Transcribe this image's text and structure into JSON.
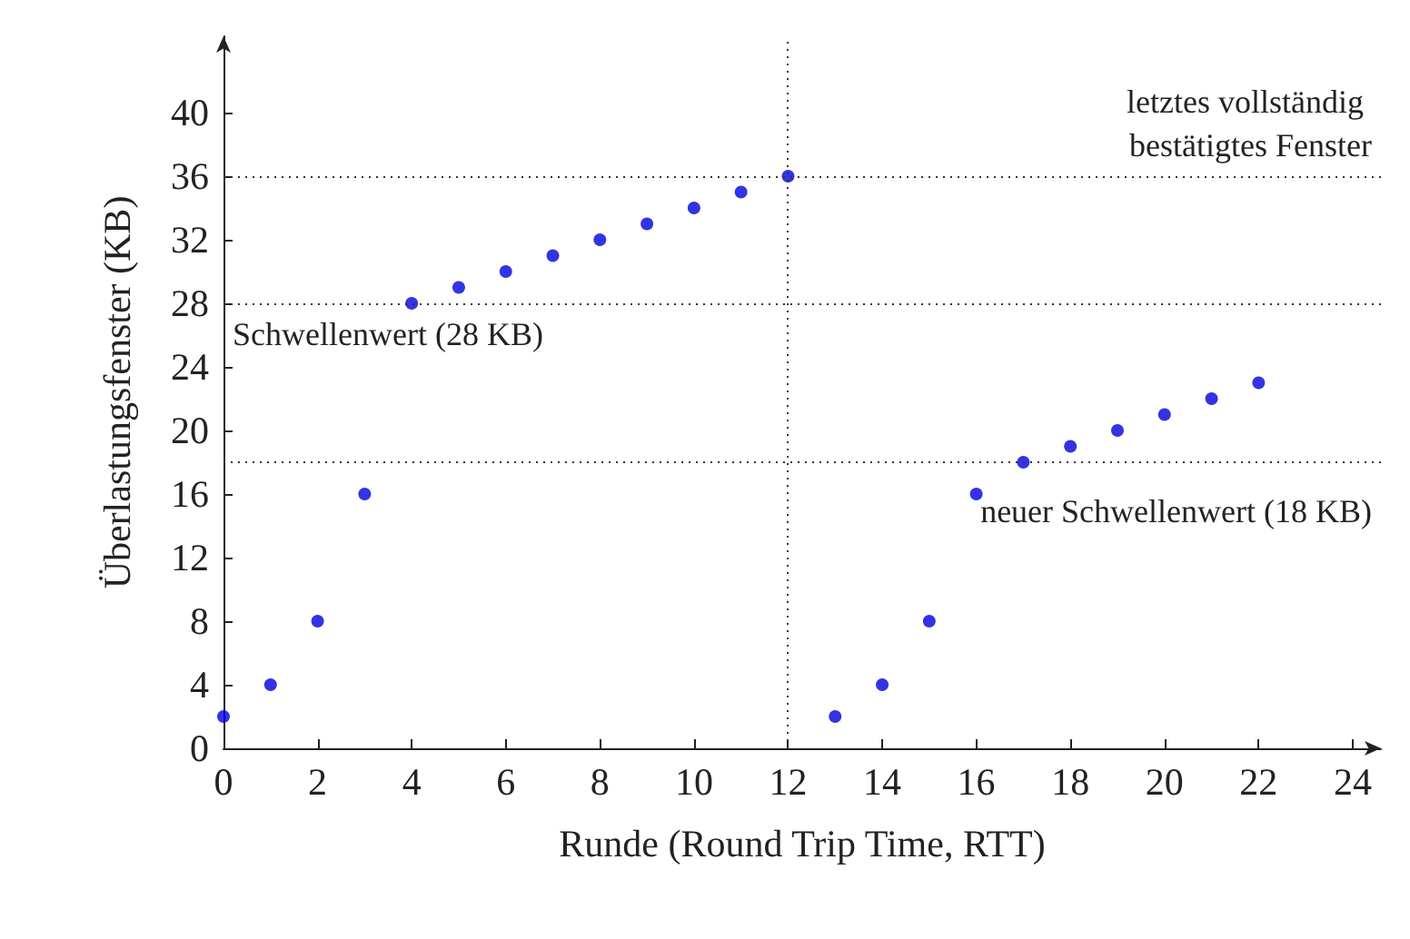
{
  "chart_data": {
    "type": "scatter",
    "xlabel": "Runde (Round Trip Time, RTT)",
    "ylabel": "Überlastungsfenster (KB)",
    "x": [
      0,
      1,
      2,
      3,
      4,
      5,
      6,
      7,
      8,
      9,
      10,
      11,
      12,
      13,
      14,
      15,
      16,
      17,
      18,
      19,
      20,
      21,
      22
    ],
    "series": [
      {
        "color": "#0000dd",
        "values": [
          2,
          4,
          8,
          16,
          28,
          29,
          30,
          31,
          32,
          33,
          34,
          35,
          36,
          2,
          4,
          8,
          16,
          18,
          19,
          20,
          21,
          22,
          23
        ]
      }
    ],
    "xlim": [
      0,
      24.6
    ],
    "xticks": [
      0,
      2,
      4,
      6,
      8,
      10,
      12,
      14,
      16,
      18,
      20,
      22,
      24
    ],
    "ylim": [
      0,
      44.8
    ],
    "yticks": [
      0,
      4,
      8,
      12,
      16,
      20,
      24,
      28,
      32,
      36,
      40
    ],
    "grid": false,
    "marker": "circle",
    "ref_lines": [
      {
        "axis": "y",
        "value": 28,
        "label": "Schwellenwert (28 KB)",
        "color": "#333333",
        "line_style": "dotted"
      },
      {
        "axis": "y",
        "value": 36,
        "label": "letztes vollständig bestätigtes Fenster",
        "color": "#333333",
        "line_style": "dotted"
      },
      {
        "axis": "x",
        "value": 12,
        "label": null,
        "color": "#333333",
        "line_style": "dotted"
      },
      {
        "axis": "y",
        "value": 18,
        "label": "neuer Schwellenwert (18 KB)",
        "color": "#333333",
        "line_style": "dotted"
      }
    ]
  }
}
